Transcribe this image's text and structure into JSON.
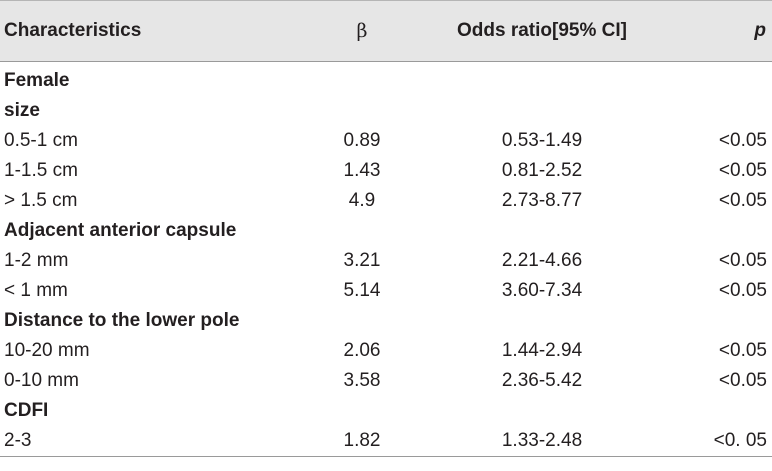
{
  "table": {
    "headers": [
      "Characteristics",
      "β",
      "Odds ratio[95% CI]",
      "p"
    ],
    "rows": [
      {
        "type": "group",
        "label": "Female"
      },
      {
        "type": "group",
        "label": "size"
      },
      {
        "type": "data",
        "label": "0.5-1 cm",
        "beta": "0.89",
        "or_ci": "0.53-1.49",
        "p": "<0.05"
      },
      {
        "type": "data",
        "label": "1-1.5 cm",
        "beta": "1.43",
        "or_ci": "0.81-2.52",
        "p": "<0.05"
      },
      {
        "type": "data",
        "label": "> 1.5 cm",
        "beta": "4.9",
        "or_ci": "2.73-8.77",
        "p": "<0.05"
      },
      {
        "type": "group",
        "label": "Adjacent anterior capsule"
      },
      {
        "type": "data",
        "label": "1-2 mm",
        "beta": "3.21",
        "or_ci": "2.21-4.66",
        "p": "<0.05"
      },
      {
        "type": "data",
        "label": "< 1 mm",
        "beta": "5.14",
        "or_ci": "3.60-7.34",
        "p": "<0.05"
      },
      {
        "type": "group",
        "label": "Distance to the lower pole"
      },
      {
        "type": "data",
        "label": "10-20 mm",
        "beta": "2.06",
        "or_ci": "1.44-2.94",
        "p": "<0.05"
      },
      {
        "type": "data",
        "label": "0-10 mm",
        "beta": "3.58",
        "or_ci": "2.36-5.42",
        "p": "<0.05"
      },
      {
        "type": "group",
        "label": "CDFI"
      },
      {
        "type": "data",
        "label": "2-3",
        "beta": "1.82",
        "or_ci": "1.33-2.48",
        "p": "<0. 05"
      }
    ]
  }
}
